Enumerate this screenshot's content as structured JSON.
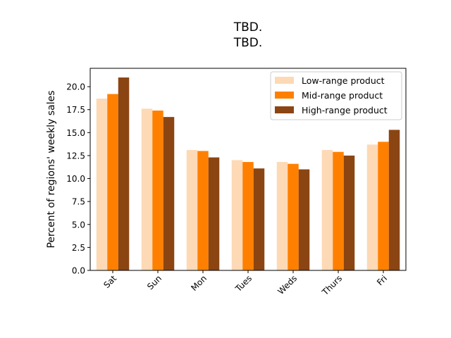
{
  "chart_data": {
    "type": "bar",
    "title": "TBD.\nTBD.",
    "title_lines": [
      "TBD.",
      "TBD."
    ],
    "xlabel": "",
    "ylabel": "Percent of regions' weekly sales",
    "categories": [
      "Sat",
      "Sun",
      "Mon",
      "Tues",
      "Weds",
      "Thurs",
      "Fri"
    ],
    "ylim": [
      0,
      22
    ],
    "yticks": [
      "0.0",
      "2.5",
      "5.0",
      "7.5",
      "10.0",
      "12.5",
      "15.0",
      "17.5",
      "20.0"
    ],
    "grid": false,
    "legend_position": "top-right",
    "series": [
      {
        "name": "Low-range product",
        "color": "#fdd9b5",
        "values": [
          18.7,
          17.6,
          13.1,
          12.0,
          11.8,
          13.1,
          13.7
        ]
      },
      {
        "name": "Mid-range product",
        "color": "#ff8000",
        "values": [
          19.2,
          17.4,
          13.0,
          11.8,
          11.6,
          12.9,
          14.0
        ]
      },
      {
        "name": "High-range product",
        "color": "#8b4513",
        "values": [
          21.0,
          16.7,
          12.3,
          11.1,
          11.0,
          12.5,
          15.3
        ]
      }
    ]
  }
}
